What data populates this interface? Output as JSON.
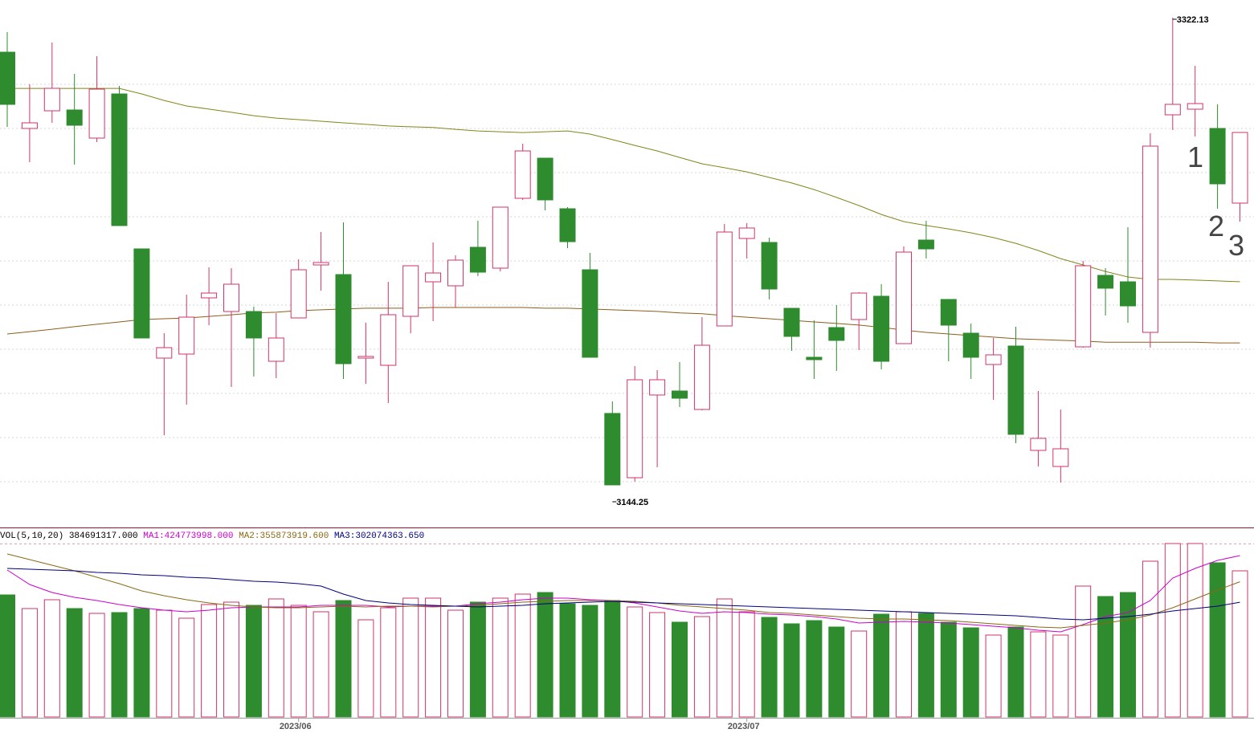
{
  "chart_data": [
    {
      "type": "candlestick",
      "up_color": "#d2336a",
      "down_color": "#2e8b2e",
      "ylim": [
        3133.24,
        3328.85
      ],
      "open": [
        3308.98,
        3279.95,
        3286.67,
        3286.98,
        3276.28,
        3293.09,
        3234.1,
        3192.53,
        3194.06,
        3215.46,
        3210.26,
        3210.26,
        3191.31,
        3207.82,
        3227.99,
        3224.32,
        3192.53,
        3189.78,
        3208.43,
        3221.57,
        3220.04,
        3234.71,
        3226.77,
        3253.36,
        3268.64,
        3249.38,
        3226.15,
        3171.45,
        3146.99,
        3178.48,
        3180.0,
        3172.97,
        3204.76,
        3238.07,
        3236.55,
        3211.48,
        3192.84,
        3204.15,
        3207.21,
        3216.07,
        3198.04,
        3237.46,
        3214.85,
        3202.01,
        3190.09,
        3197.12,
        3157.39,
        3151.27,
        3196.81,
        3224.02,
        3221.57,
        3202.32,
        3285.14,
        3287.28,
        3279.95,
        3251.52
      ],
      "close": [
        3289.12,
        3282.09,
        3295.23,
        3281.17,
        3294.92,
        3242.97,
        3200.18,
        3196.51,
        3208.12,
        3217.29,
        3220.65,
        3200.18,
        3200.18,
        3226.15,
        3228.91,
        3190.4,
        3193.15,
        3209.04,
        3227.68,
        3224.93,
        3229.82,
        3225.24,
        3249.99,
        3271.39,
        3252.75,
        3236.85,
        3192.84,
        3144.25,
        3184.28,
        3184.28,
        3177.25,
        3197.42,
        3240.52,
        3242.05,
        3218.82,
        3200.79,
        3191.92,
        3199.26,
        3217.29,
        3191.31,
        3232.88,
        3234.1,
        3205.07,
        3192.84,
        3193.76,
        3163.5,
        3161.97,
        3158.0,
        3227.68,
        3219.13,
        3212.4,
        3273.22,
        3289.12,
        3289.42,
        3258.86,
        3278.42
      ],
      "high": [
        3316.62,
        3296.76,
        3312.65,
        3300.73,
        3307.46,
        3296.15,
        3234.1,
        3202.01,
        3216.68,
        3227.07,
        3226.77,
        3212.1,
        3209.65,
        3230.13,
        3240.52,
        3244.19,
        3205.98,
        3221.57,
        3227.68,
        3236.55,
        3231.66,
        3244.8,
        3249.99,
        3274.14,
        3268.64,
        3249.99,
        3232.57,
        3176.03,
        3189.48,
        3187.95,
        3191.01,
        3208.12,
        3243.58,
        3243.88,
        3238.38,
        3211.48,
        3206.9,
        3212.71,
        3217.6,
        3220.65,
        3235.02,
        3244.8,
        3214.85,
        3205.68,
        3200.18,
        3204.46,
        3180.0,
        3172.97,
        3229.52,
        3226.77,
        3242.35,
        3278.11,
        3322.13,
        3303.79,
        3289.12,
        3278.42
      ],
      "low": [
        3280.56,
        3267.11,
        3282.09,
        3266.19,
        3274.75,
        3242.97,
        3200.18,
        3163.19,
        3174.81,
        3205.07,
        3181.53,
        3185.5,
        3184.89,
        3207.82,
        3218.21,
        3184.59,
        3182.75,
        3175.42,
        3202.01,
        3206.59,
        3211.79,
        3223.71,
        3225.54,
        3252.75,
        3248.77,
        3234.41,
        3192.84,
        3144.25,
        3145.5,
        3150.97,
        3173.89,
        3172.67,
        3204.76,
        3230.43,
        3214.85,
        3195.29,
        3184.59,
        3187.64,
        3195.59,
        3188.26,
        3198.04,
        3230.43,
        3191.31,
        3184.59,
        3176.64,
        3160.14,
        3151.27,
        3145.16,
        3196.51,
        3208.73,
        3205.98,
        3196.51,
        3279.34,
        3276.89,
        3249.38,
        3244.49
      ],
      "series": [
        {
          "color": "#858519",
          "values": [
            3295.2,
            3295.2,
            3295.2,
            3295.2,
            3295.2,
            3295.2,
            3293.1,
            3290.6,
            3288.5,
            3287.3,
            3286.1,
            3284.8,
            3283.9,
            3283.3,
            3282.7,
            3282.1,
            3281.5,
            3280.9,
            3280.6,
            3280.3,
            3279.6,
            3279.0,
            3278.7,
            3278.4,
            3278.7,
            3279.0,
            3277.8,
            3275.7,
            3273.5,
            3271.4,
            3268.9,
            3266.5,
            3265.0,
            3263.4,
            3261.3,
            3259.2,
            3256.7,
            3253.7,
            3250.6,
            3247.2,
            3244.5,
            3243.0,
            3241.7,
            3240.2,
            3238.4,
            3236.2,
            3233.5,
            3230.4,
            3228.0,
            3225.5,
            3223.4,
            3222.5,
            3222.5,
            3222.2,
            3221.9,
            3221.6
          ]
        },
        {
          "color": "#8b5e1a",
          "values": [
            3201.7,
            3202.6,
            3203.5,
            3204.5,
            3205.4,
            3206.3,
            3207.2,
            3207.5,
            3207.8,
            3208.4,
            3209.0,
            3209.7,
            3210.0,
            3210.6,
            3210.9,
            3211.2,
            3211.5,
            3211.5,
            3211.5,
            3211.8,
            3211.8,
            3211.8,
            3211.8,
            3211.8,
            3211.5,
            3211.5,
            3211.2,
            3210.9,
            3210.6,
            3210.3,
            3209.7,
            3209.4,
            3208.7,
            3208.1,
            3207.5,
            3206.9,
            3206.3,
            3205.7,
            3205.1,
            3204.2,
            3203.2,
            3202.3,
            3201.7,
            3201.1,
            3200.5,
            3199.9,
            3199.6,
            3199.3,
            3199.0,
            3198.6,
            3198.6,
            3198.6,
            3198.6,
            3198.6,
            3198.3,
            3198.3
          ]
        }
      ],
      "annotations": [
        "1",
        "2",
        "3"
      ]
    },
    {
      "type": "bar",
      "title": "VOL(5,10,20)",
      "up_color": "#d2336a",
      "down_color": "#2e8b2e",
      "ylim": [
        0,
        456560000
      ],
      "categories": [
        null,
        null,
        null,
        null,
        null,
        null,
        null,
        null,
        null,
        null,
        null,
        null,
        null,
        "2023/06",
        null,
        null,
        null,
        null,
        null,
        null,
        null,
        null,
        null,
        null,
        null,
        null,
        null,
        null,
        null,
        null,
        null,
        null,
        null,
        "2023/07",
        null,
        null,
        null,
        null,
        null,
        null,
        null,
        null,
        null,
        null,
        null,
        null,
        null,
        null,
        null,
        null,
        null,
        null,
        null,
        null,
        null,
        null
      ],
      "values": [
        321280000,
        285350000,
        308600000,
        285350000,
        272670000,
        274780000,
        285350000,
        281120000,
        259980000,
        295920000,
        302260000,
        293800000,
        310710000,
        293800000,
        276890000,
        306490000,
        255760000,
        287460000,
        312830000,
        312830000,
        281120000,
        302260000,
        312830000,
        323400000,
        327620000,
        298030000,
        293800000,
        306490000,
        289580000,
        274780000,
        249420000,
        264210000,
        310710000,
        276890000,
        262100000,
        245190000,
        253640000,
        236730000,
        226170000,
        270550000,
        276890000,
        272670000,
        249420000,
        234620000,
        215600000,
        236730000,
        224050000,
        215600000,
        344530000,
        317060000,
        327620000,
        410060000,
        456560000,
        456560000,
        405830000,
        384691317
      ],
      "value_labels": [
        null,
        null,
        null,
        null,
        null,
        null,
        null,
        null,
        null,
        null,
        null,
        null,
        null,
        null,
        null,
        null,
        null,
        null,
        null,
        null,
        null,
        null,
        null,
        null,
        null,
        null,
        null,
        null,
        null,
        null,
        null,
        null,
        null,
        null,
        null,
        null,
        null,
        null,
        null,
        null,
        null,
        null,
        null,
        null,
        null,
        null,
        null,
        null,
        null,
        null,
        null,
        null,
        null,
        null,
        null,
        "384691317.000"
      ],
      "series": [
        {
          "name": "MA1:",
          "color": "#cc00cc",
          "values": [
            386800000,
            348800000,
            327600000,
            314900000,
            306500000,
            295900000,
            287500000,
            281100000,
            276900000,
            281100000,
            287500000,
            289600000,
            289600000,
            289600000,
            293800000,
            293800000,
            293800000,
            289600000,
            291700000,
            291700000,
            291700000,
            298000000,
            302300000,
            308600000,
            312800000,
            312800000,
            308600000,
            306500000,
            300100000,
            289600000,
            279000000,
            272700000,
            276900000,
            274800000,
            270600000,
            268400000,
            264200000,
            257900000,
            247300000,
            249400000,
            251500000,
            249400000,
            247300000,
            243100000,
            238800000,
            234600000,
            228300000,
            224100000,
            243100000,
            264200000,
            274800000,
            306500000,
            365700000,
            391000000,
            412200000,
            424773998
          ],
          "value_labels": [
            null,
            null,
            null,
            null,
            null,
            null,
            null,
            null,
            null,
            null,
            null,
            null,
            null,
            null,
            null,
            null,
            null,
            null,
            null,
            null,
            null,
            null,
            null,
            null,
            null,
            null,
            null,
            null,
            null,
            null,
            null,
            null,
            null,
            null,
            null,
            null,
            null,
            null,
            null,
            null,
            null,
            null,
            null,
            null,
            null,
            null,
            null,
            null,
            null,
            null,
            null,
            null,
            null,
            null,
            null,
            "424773998.000"
          ]
        },
        {
          "name": "MA2:",
          "color": "#8b6914",
          "values": [
            429100000,
            414300000,
            399500000,
            384700000,
            367800000,
            350900000,
            331800000,
            319200000,
            308600000,
            300100000,
            293800000,
            289600000,
            287500000,
            287500000,
            289600000,
            291700000,
            289600000,
            291700000,
            291700000,
            289600000,
            291700000,
            293800000,
            298000000,
            302300000,
            304400000,
            306500000,
            306500000,
            306500000,
            304400000,
            300100000,
            293800000,
            289600000,
            285300000,
            281100000,
            274800000,
            272700000,
            268400000,
            264200000,
            260000000,
            257900000,
            257900000,
            255800000,
            253600000,
            249400000,
            245200000,
            241000000,
            236700000,
            234600000,
            241000000,
            247300000,
            255800000,
            268400000,
            287500000,
            310700000,
            334000000,
            355873919.6
          ],
          "value_labels": [
            null,
            null,
            null,
            null,
            null,
            null,
            null,
            null,
            null,
            null,
            null,
            null,
            null,
            null,
            null,
            null,
            null,
            null,
            null,
            null,
            null,
            null,
            null,
            null,
            null,
            null,
            null,
            null,
            null,
            null,
            null,
            null,
            null,
            null,
            null,
            null,
            null,
            null,
            null,
            null,
            null,
            null,
            null,
            null,
            null,
            null,
            null,
            null,
            null,
            null,
            null,
            null,
            null,
            null,
            null,
            "355873919.600"
          ]
        },
        {
          "name": "MA3:",
          "color": "#000080",
          "values": [
            391000000,
            388900000,
            386800000,
            384700000,
            380500000,
            378400000,
            374100000,
            372000000,
            367800000,
            365700000,
            361400000,
            357200000,
            355100000,
            350900000,
            344500000,
            323400000,
            306500000,
            300100000,
            295900000,
            293800000,
            291700000,
            289600000,
            291700000,
            293800000,
            298000000,
            300100000,
            302300000,
            304400000,
            302300000,
            300100000,
            298000000,
            295900000,
            293800000,
            291700000,
            289600000,
            287500000,
            285300000,
            283200000,
            281100000,
            279000000,
            276900000,
            274800000,
            272700000,
            270600000,
            268400000,
            266300000,
            262100000,
            257900000,
            255800000,
            260000000,
            264200000,
            270600000,
            279000000,
            285300000,
            291700000,
            302074363.65
          ],
          "value_labels": [
            null,
            null,
            null,
            null,
            null,
            null,
            null,
            null,
            null,
            null,
            null,
            null,
            null,
            null,
            null,
            null,
            null,
            null,
            null,
            null,
            null,
            null,
            null,
            null,
            null,
            null,
            null,
            null,
            null,
            null,
            null,
            null,
            null,
            null,
            null,
            null,
            null,
            null,
            null,
            null,
            null,
            null,
            null,
            null,
            null,
            null,
            null,
            null,
            null,
            null,
            null,
            null,
            null,
            null,
            null,
            "302074363.650"
          ]
        }
      ]
    }
  ]
}
